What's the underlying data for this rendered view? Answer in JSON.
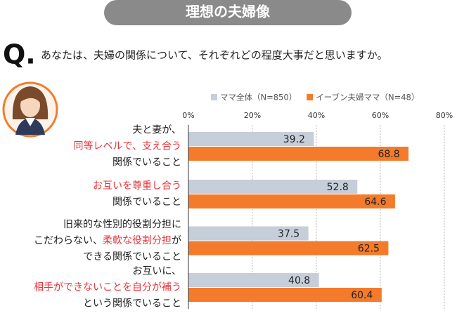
{
  "chart_data": {
    "type": "bar",
    "orientation": "horizontal",
    "title": "理想の夫婦像",
    "question_label": "Q.",
    "question": "あなたは、夫婦の関係について、それぞれどの程度大事だと思いますか。",
    "categories": [
      [
        [
          "夫と妻が、"
        ],
        [
          {
            "text": "同等レベルで、支え合う",
            "color": "#e8343a"
          }
        ],
        [
          "関係でいること"
        ]
      ],
      [
        [
          {
            "text": "お互いを尊重し合う",
            "color": "#e8343a"
          }
        ],
        [
          "関係でいること"
        ]
      ],
      [
        [
          "旧来的な性別的役割分担に"
        ],
        [
          "こだわらない、",
          {
            "text": "柔軟な役割分担",
            "color": "#e8343a"
          },
          "が"
        ],
        [
          "できる関係でいること"
        ]
      ],
      [
        [
          "お互いに、"
        ],
        [
          {
            "text": "相手ができないことを自分が補う",
            "color": "#e8343a"
          }
        ],
        [
          "という関係でいること"
        ]
      ]
    ],
    "series": [
      {
        "name": "ママ全体（N=850）",
        "color": "#c6ced9",
        "values": [
          39.2,
          52.8,
          37.5,
          40.8
        ]
      },
      {
        "name": "イーブン夫婦ママ（N=48）",
        "color": "#f37b2b",
        "values": [
          68.8,
          64.6,
          62.5,
          60.4
        ]
      }
    ],
    "xlim": [
      0,
      80
    ],
    "xticks": [
      {
        "value": 0,
        "label": "0%"
      },
      {
        "value": 20,
        "label": "20%"
      },
      {
        "value": 40,
        "label": "40%"
      },
      {
        "value": 60,
        "label": "60%"
      },
      {
        "value": 80,
        "label": "80%"
      }
    ],
    "grid": true
  }
}
